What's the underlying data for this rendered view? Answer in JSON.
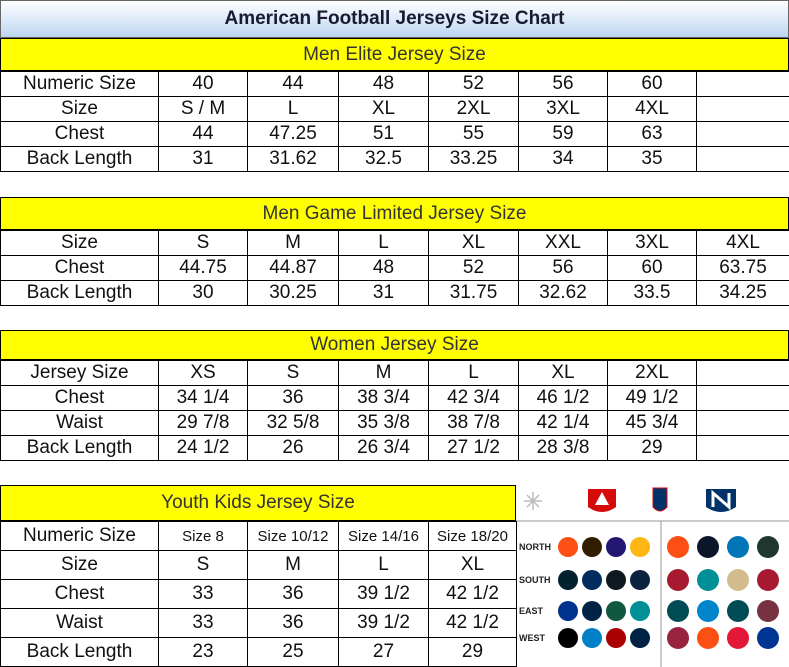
{
  "title": "American Football Jerseys Size Chart",
  "sections": [
    {
      "heading": "Men Elite Jersey Size",
      "rows": [
        [
          "Numeric Size",
          "40",
          "44",
          "48",
          "52",
          "56",
          "60"
        ],
        [
          "Size",
          "S / M",
          "L",
          "XL",
          "2XL",
          "3XL",
          "4XL"
        ],
        [
          "Chest",
          "44",
          "47.25",
          "51",
          "55",
          "59",
          "63"
        ],
        [
          "Back Length",
          "31",
          "31.62",
          "32.5",
          "33.25",
          "34",
          "35"
        ]
      ]
    },
    {
      "heading": "Men Game Limited Jersey Size",
      "rows": [
        [
          "Size",
          "S",
          "M",
          "L",
          "XL",
          "XXL",
          "3XL",
          "4XL"
        ],
        [
          "Chest",
          "44.75",
          "44.87",
          "48",
          "52",
          "56",
          "60",
          "63.75"
        ],
        [
          "Back Length",
          "30",
          "30.25",
          "31",
          "31.75",
          "32.62",
          "33.5",
          "34.25"
        ]
      ]
    },
    {
      "heading": "Women Jersey Size",
      "rows": [
        [
          "Jersey Size",
          "XS",
          "S",
          "M",
          "L",
          "XL",
          "2XL"
        ],
        [
          "Chest",
          "34 1/4",
          "36",
          "38 3/4",
          "42 3/4",
          "46 1/2",
          "49 1/2"
        ],
        [
          "Waist",
          "29 7/8",
          "32 5/8",
          "35 3/8",
          "38 7/8",
          "42 1/4",
          "45 3/4"
        ],
        [
          "Back Length",
          "24 1/2",
          "26",
          "26 3/4",
          "27 1/2",
          "28 3/8",
          "29"
        ]
      ]
    },
    {
      "heading": "Youth Kids Jersey Size",
      "rows": [
        [
          "Numeric Size",
          "Size 8",
          "Size 10/12",
          "Size 14/16",
          "Size 18/20"
        ],
        [
          "Size",
          "S",
          "M",
          "L",
          "XL"
        ],
        [
          "Chest",
          "33",
          "36",
          "39 1/2",
          "42 1/2"
        ],
        [
          "Waist",
          "33",
          "36",
          "39 1/2",
          "42 1/2"
        ],
        [
          "Back Length",
          "23",
          "25",
          "27",
          "29"
        ]
      ]
    }
  ],
  "logo_panel": {
    "divisions": [
      "NORTH",
      "SOUTH",
      "EAST",
      "WEST"
    ]
  }
}
